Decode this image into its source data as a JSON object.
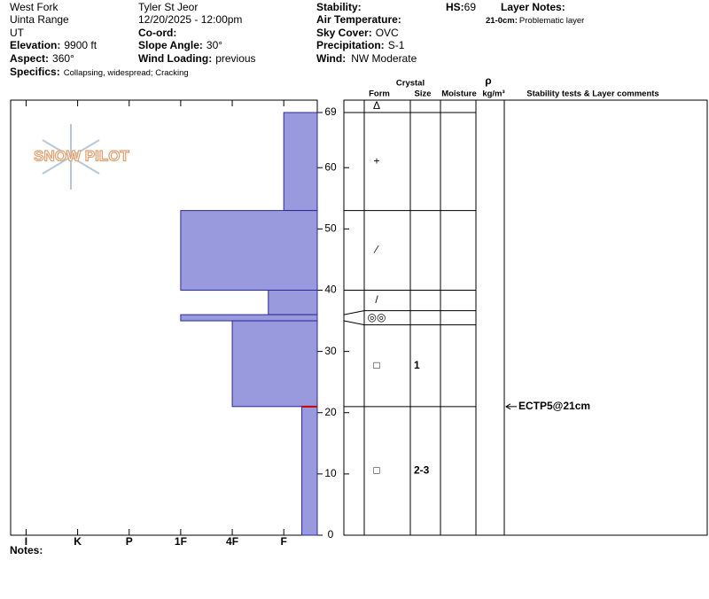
{
  "header": {
    "location": "West Fork",
    "range": "Uinta Range",
    "state": "UT",
    "elevation": {
      "label": "Elevation:",
      "value": "9900 ft"
    },
    "aspect": {
      "label": "Aspect:",
      "value": "360°"
    },
    "specifics": {
      "label": "Specifics:",
      "value": "Collapsing, widespread; Cracking"
    },
    "observer": "Tyler St Jeor",
    "datetime": "12/20/2025 - 12:00pm",
    "coord": {
      "label": "Co-ord:"
    },
    "slope_angle": {
      "label": "Slope Angle:",
      "value": "30°"
    },
    "wind_loading": {
      "label": "Wind Loading:",
      "value": "previous"
    },
    "stability": {
      "label": "Stability:"
    },
    "air_temperature": {
      "label": "Air Temperature:"
    },
    "sky_cover": {
      "label": "Sky Cover:",
      "value": "OVC"
    },
    "precipitation": {
      "label": "Precipitation:",
      "value": "S-1"
    },
    "wind": {
      "label": "Wind:",
      "value": "NW Moderate"
    },
    "hs": {
      "label": "HS:",
      "value": 69
    },
    "layer_notes": {
      "title": "Layer Notes:",
      "entries": [
        {
          "range": "21-0cm:",
          "text": "Problematic layer"
        }
      ]
    }
  },
  "logo": "SNOW PILOT",
  "columns": {
    "crystal": "Crystal",
    "form": "Form",
    "size": "Size",
    "moisture": "Moisture",
    "density_symbol": "ρ",
    "density_unit": "kg/m³",
    "comments": "Stability tests & Layer comments"
  },
  "chart_data": {
    "type": "snow-profile",
    "ylim": [
      0,
      69
    ],
    "yticks": [
      0,
      10,
      20,
      30,
      40,
      50,
      60,
      69
    ],
    "xlim": [
      6.3,
      0.35
    ],
    "xticks": [
      {
        "value": 6,
        "label": "I"
      },
      {
        "value": 5,
        "label": "K"
      },
      {
        "value": 4,
        "label": "P"
      },
      {
        "value": 3,
        "label": "1F"
      },
      {
        "value": 2,
        "label": "4F"
      },
      {
        "value": 1,
        "label": "F"
      }
    ],
    "color": "#9999dd",
    "surface_form": "Δ",
    "layers": [
      {
        "top": 69,
        "bottom": 53,
        "hardness": 1,
        "form": "+"
      },
      {
        "top": 53,
        "bottom": 40,
        "hardness": 3,
        "form": "⁄"
      },
      {
        "top": 40,
        "bottom": 36,
        "hardness": 1.3,
        "form": "/"
      },
      {
        "top": 36,
        "bottom": 35,
        "hardness": 3,
        "form": "◎◎"
      },
      {
        "top": 35,
        "bottom": 21,
        "hardness": 2,
        "form": "□",
        "size": "1"
      },
      {
        "top": 21,
        "bottom": 0,
        "hardness": 0.65,
        "form": "□",
        "size": "2-3"
      }
    ],
    "critical_layer": {
      "height": 21,
      "color": "#cc0000"
    },
    "tests": [
      {
        "height": 21,
        "text": "ECTP5@21cm"
      }
    ]
  },
  "notes": {
    "label": "Notes:"
  }
}
